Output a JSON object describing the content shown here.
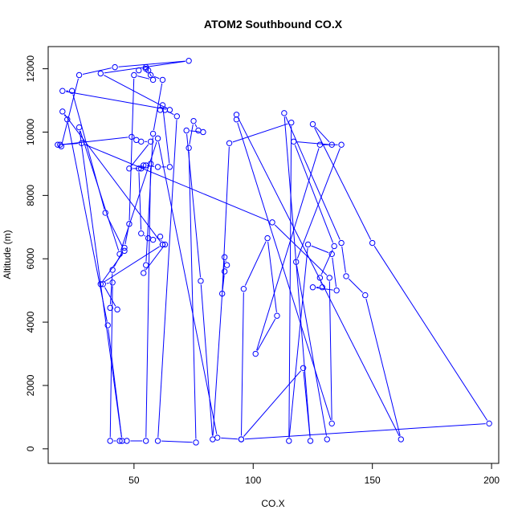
{
  "chart_data": {
    "type": "line",
    "title": "ATOM2 Southbound CO.X",
    "xlabel": "CO.X",
    "ylabel": "Altitude (m)",
    "xlim": [
      14,
      203
    ],
    "ylim": [
      -460,
      12700
    ],
    "xticks": [
      50,
      100,
      150,
      200
    ],
    "yticks": [
      0,
      2000,
      4000,
      6000,
      8000,
      10000,
      12000
    ],
    "series_color": "#0000ff",
    "marker": "open-circle",
    "grid": false,
    "x": [
      19.5,
      27,
      42,
      73,
      36,
      65,
      20,
      24,
      38,
      46,
      36,
      62,
      20,
      22,
      39,
      45,
      27,
      44,
      60,
      85,
      95,
      121,
      124,
      113,
      137,
      139,
      147,
      162,
      93,
      93,
      133,
      132,
      108,
      28,
      18,
      19,
      49,
      51,
      53,
      57,
      48,
      53,
      52,
      53,
      56,
      58,
      61,
      62,
      63,
      54,
      55,
      58,
      62,
      57,
      55,
      52,
      55,
      56,
      58,
      50,
      48,
      46,
      41,
      40,
      43,
      37,
      41,
      40,
      44,
      47,
      55,
      57,
      55,
      54,
      60,
      65,
      62,
      61,
      63,
      68,
      60,
      76,
      73,
      75,
      77,
      79,
      72,
      78,
      83,
      88,
      89,
      88,
      87,
      90,
      116,
      115,
      123,
      133,
      135,
      125,
      129,
      128,
      134,
      117,
      133,
      125,
      150,
      199,
      95,
      96,
      106,
      110,
      101,
      128,
      137,
      118,
      131
    ],
    "y": [
      9550,
      11800,
      12050,
      12250,
      11850,
      10700,
      11300,
      11300,
      7450,
      6250,
      5200,
      6450,
      10650,
      10400,
      3900,
      250,
      10150,
      6150,
      9800,
      350,
      300,
      2550,
      250,
      10600,
      6500,
      5450,
      4850,
      300,
      10550,
      10400,
      800,
      5400,
      7150,
      9650,
      9600,
      9600,
      9850,
      9750,
      9700,
      9700,
      8850,
      8850,
      8850,
      6800,
      6650,
      6600,
      6700,
      6450,
      6450,
      5550,
      5800,
      9950,
      11650,
      11800,
      12050,
      11950,
      12000,
      11950,
      11650,
      11800,
      7100,
      6350,
      5650,
      4450,
      4400,
      5200,
      5250,
      250,
      250,
      250,
      250,
      9000,
      8950,
      8950,
      8900,
      8900,
      10850,
      10700,
      10700,
      10500,
      250,
      200,
      9500,
      10350,
      10050,
      10000,
      10050,
      5300,
      300,
      6050,
      5800,
      5600,
      4900,
      9650,
      10300,
      250,
      6450,
      6150,
      5000,
      5100,
      5100,
      5400,
      6400,
      9700,
      9600,
      10250,
      6500,
      800,
      300,
      5050,
      6650,
      4200,
      3000,
      9600,
      9600,
      5900,
      300
    ]
  }
}
